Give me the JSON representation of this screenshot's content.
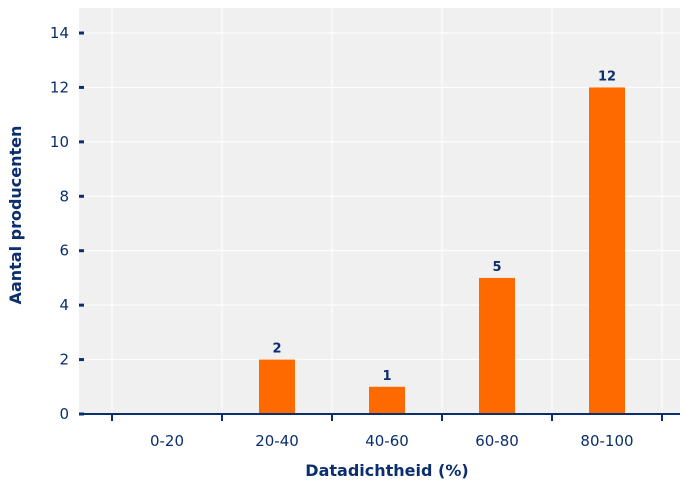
{
  "chart_data": {
    "type": "bar",
    "categories": [
      "0-20",
      "20-40",
      "40-60",
      "60-80",
      "80-100"
    ],
    "values": [
      0,
      2,
      1,
      5,
      12
    ],
    "data_labels": [
      "",
      "2",
      "1",
      "5",
      "12"
    ],
    "xlabel": "Datadichtheid (%)",
    "ylabel": "Aantal producenten",
    "ylim": [
      0,
      14
    ],
    "yticks": [
      "0",
      "2",
      "4",
      "6",
      "8",
      "10",
      "12",
      "14"
    ],
    "grid": true,
    "legend": "none",
    "colors": {
      "bar": "#ff6a00",
      "axis": "#0b2e6e",
      "plot_background": "#f0f0f0",
      "gridline": "#ffffff"
    }
  }
}
